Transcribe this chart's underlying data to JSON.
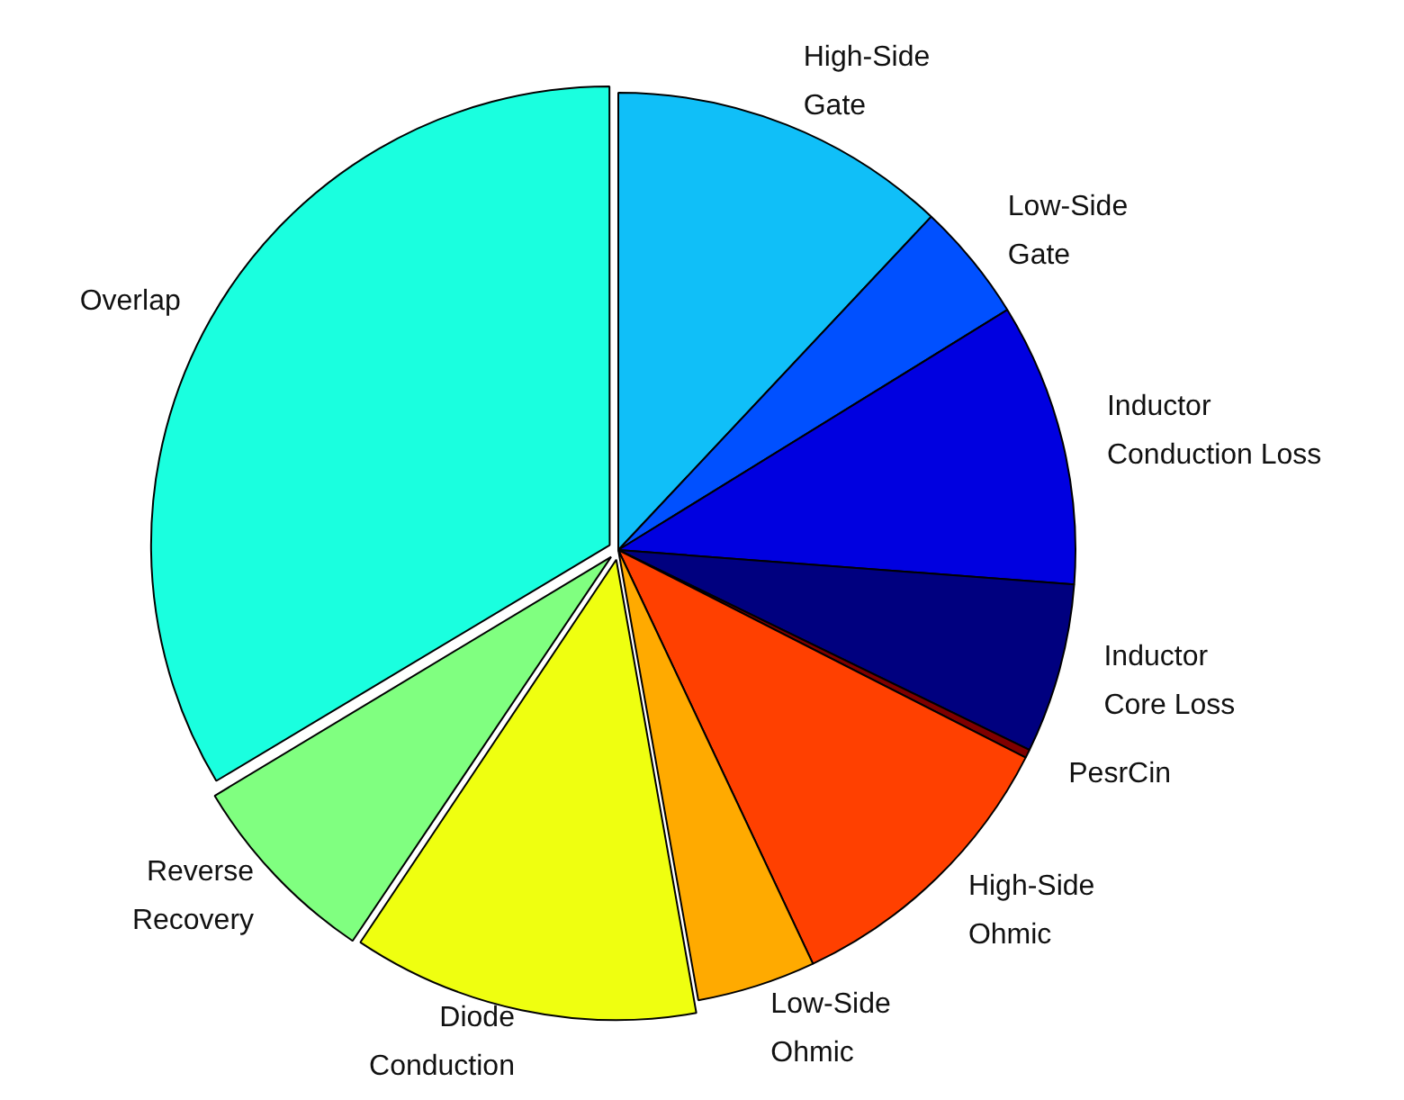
{
  "chart_data": {
    "type": "pie",
    "categories": [
      "High-Side\nGate",
      "Low-Side\nGate",
      "Inductor\nConduction Loss",
      "Inductor\nCore Loss",
      "PesrCin",
      "High-Side\nOhmic",
      "Low-Side\nOhmic",
      "Diode\nConduction",
      "Reverse\nRecovery",
      "Overlap"
    ],
    "values": [
      12,
      4.2,
      10,
      6,
      0.3,
      10.5,
      4.2,
      12.2,
      7,
      33.6
    ],
    "colors": [
      "#10bff8",
      "#0050ff",
      "#0000e0",
      "#00007f",
      "#800000",
      "#ff4000",
      "#ffaa00",
      "#efff10",
      "#80ff80",
      "#1affdf"
    ],
    "legend": false
  }
}
